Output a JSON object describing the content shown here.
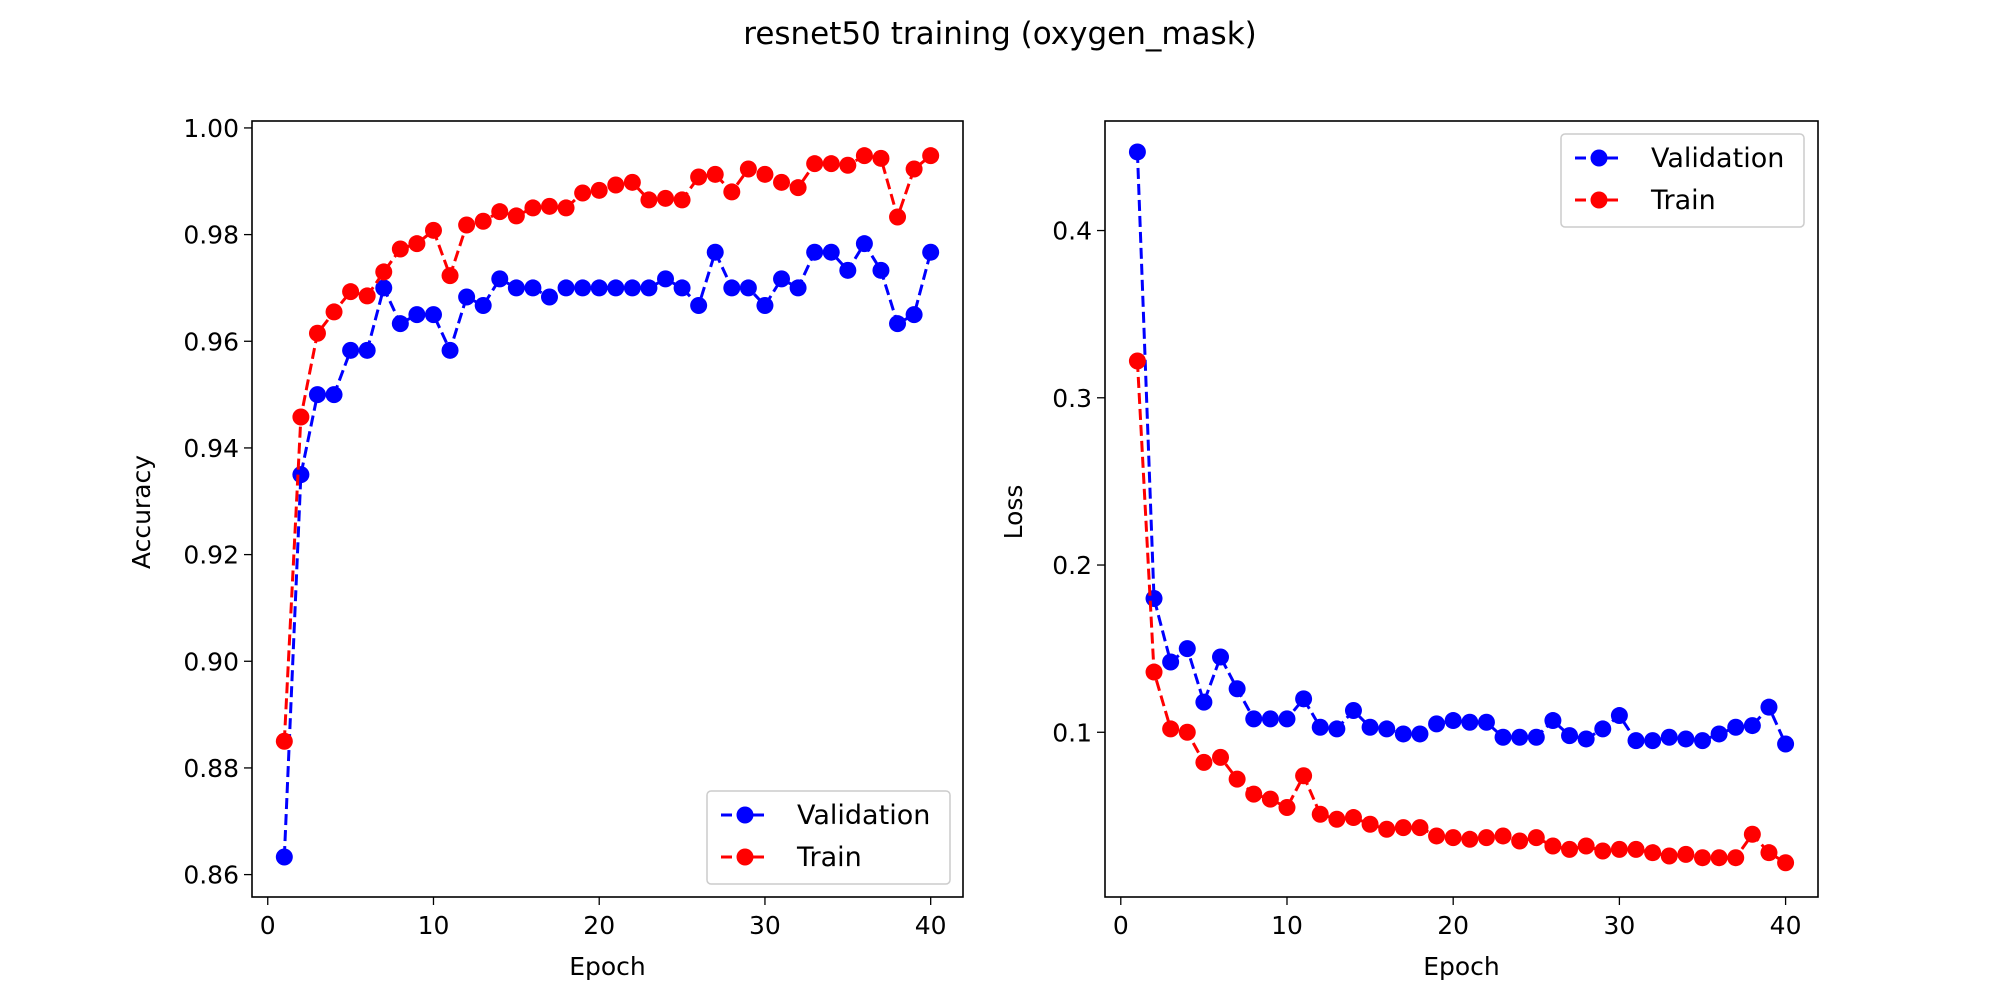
{
  "figure": {
    "title": "resnet50 training (oxygen_mask)"
  },
  "chart_data": [
    {
      "type": "line",
      "title": "",
      "xlabel": "Epoch",
      "ylabel": "Accuracy",
      "xlim": [
        -0.95,
        41.95
      ],
      "ylim": [
        0.8558,
        1.0013
      ],
      "xticks": [
        0,
        10,
        20,
        30,
        40
      ],
      "yticks": [
        0.86,
        0.88,
        0.9,
        0.92,
        0.94,
        0.96,
        0.98,
        1.0
      ],
      "ytick_labels": [
        "0.86",
        "0.88",
        "0.90",
        "0.92",
        "0.94",
        "0.96",
        "0.98",
        "1.00"
      ],
      "grid": false,
      "legend_position": "lower-right",
      "x": [
        1,
        2,
        3,
        4,
        5,
        6,
        7,
        8,
        9,
        10,
        11,
        12,
        13,
        14,
        15,
        16,
        17,
        18,
        19,
        20,
        21,
        22,
        23,
        24,
        25,
        26,
        27,
        28,
        29,
        30,
        31,
        32,
        33,
        34,
        35,
        36,
        37,
        38,
        39,
        40
      ],
      "series": [
        {
          "name": "Validation",
          "color": "#0000ff",
          "marker": "circle",
          "linestyle": "dashed",
          "values": [
            0.8633,
            0.935,
            0.95,
            0.95,
            0.9583,
            0.9583,
            0.97,
            0.9633,
            0.965,
            0.965,
            0.9583,
            0.9683,
            0.9667,
            0.9717,
            0.97,
            0.97,
            0.9683,
            0.97,
            0.97,
            0.97,
            0.97,
            0.97,
            0.97,
            0.9717,
            0.97,
            0.9667,
            0.9767,
            0.97,
            0.97,
            0.9667,
            0.9717,
            0.97,
            0.9767,
            0.9767,
            0.9733,
            0.9783,
            0.9733,
            0.9633,
            0.965,
            0.9767
          ]
        },
        {
          "name": "Train",
          "color": "#ff0000",
          "marker": "circle",
          "linestyle": "dashed",
          "values": [
            0.885,
            0.9458,
            0.9615,
            0.9655,
            0.9693,
            0.9685,
            0.973,
            0.9773,
            0.9783,
            0.9808,
            0.9723,
            0.9818,
            0.9825,
            0.9843,
            0.9835,
            0.985,
            0.9853,
            0.985,
            0.9878,
            0.9883,
            0.9893,
            0.9898,
            0.9865,
            0.9868,
            0.9865,
            0.9908,
            0.9913,
            0.988,
            0.9923,
            0.9913,
            0.9898,
            0.9888,
            0.9933,
            0.9933,
            0.993,
            0.9948,
            0.9943,
            0.9833,
            0.9923,
            0.9948
          ]
        }
      ]
    },
    {
      "type": "line",
      "title": "",
      "xlabel": "Epoch",
      "ylabel": "Loss",
      "xlim": [
        -0.95,
        41.95
      ],
      "ylim": [
        0.0015,
        0.4655
      ],
      "xticks": [
        0,
        10,
        20,
        30,
        40
      ],
      "yticks": [
        0.1,
        0.2,
        0.3,
        0.4
      ],
      "ytick_labels": [
        "0.1",
        "0.2",
        "0.3",
        "0.4"
      ],
      "grid": false,
      "legend_position": "upper-right",
      "x": [
        1,
        2,
        3,
        4,
        5,
        6,
        7,
        8,
        9,
        10,
        11,
        12,
        13,
        14,
        15,
        16,
        17,
        18,
        19,
        20,
        21,
        22,
        23,
        24,
        25,
        26,
        27,
        28,
        29,
        30,
        31,
        32,
        33,
        34,
        35,
        36,
        37,
        38,
        39,
        40
      ],
      "series": [
        {
          "name": "Validation",
          "color": "#0000ff",
          "marker": "circle",
          "linestyle": "dashed",
          "values": [
            0.447,
            0.18,
            0.142,
            0.15,
            0.118,
            0.145,
            0.126,
            0.108,
            0.108,
            0.108,
            0.12,
            0.103,
            0.102,
            0.113,
            0.103,
            0.102,
            0.099,
            0.099,
            0.105,
            0.107,
            0.106,
            0.106,
            0.097,
            0.097,
            0.097,
            0.107,
            0.098,
            0.096,
            0.102,
            0.11,
            0.095,
            0.095,
            0.097,
            0.096,
            0.095,
            0.099,
            0.103,
            0.104,
            0.115,
            0.093
          ]
        },
        {
          "name": "Train",
          "color": "#ff0000",
          "marker": "circle",
          "linestyle": "dashed",
          "values": [
            0.322,
            0.136,
            0.102,
            0.1,
            0.082,
            0.085,
            0.072,
            0.063,
            0.06,
            0.055,
            0.074,
            0.051,
            0.048,
            0.049,
            0.045,
            0.042,
            0.043,
            0.043,
            0.038,
            0.037,
            0.036,
            0.037,
            0.038,
            0.035,
            0.037,
            0.032,
            0.03,
            0.032,
            0.029,
            0.03,
            0.03,
            0.028,
            0.026,
            0.027,
            0.025,
            0.025,
            0.025,
            0.039,
            0.028,
            0.022
          ]
        }
      ]
    }
  ]
}
